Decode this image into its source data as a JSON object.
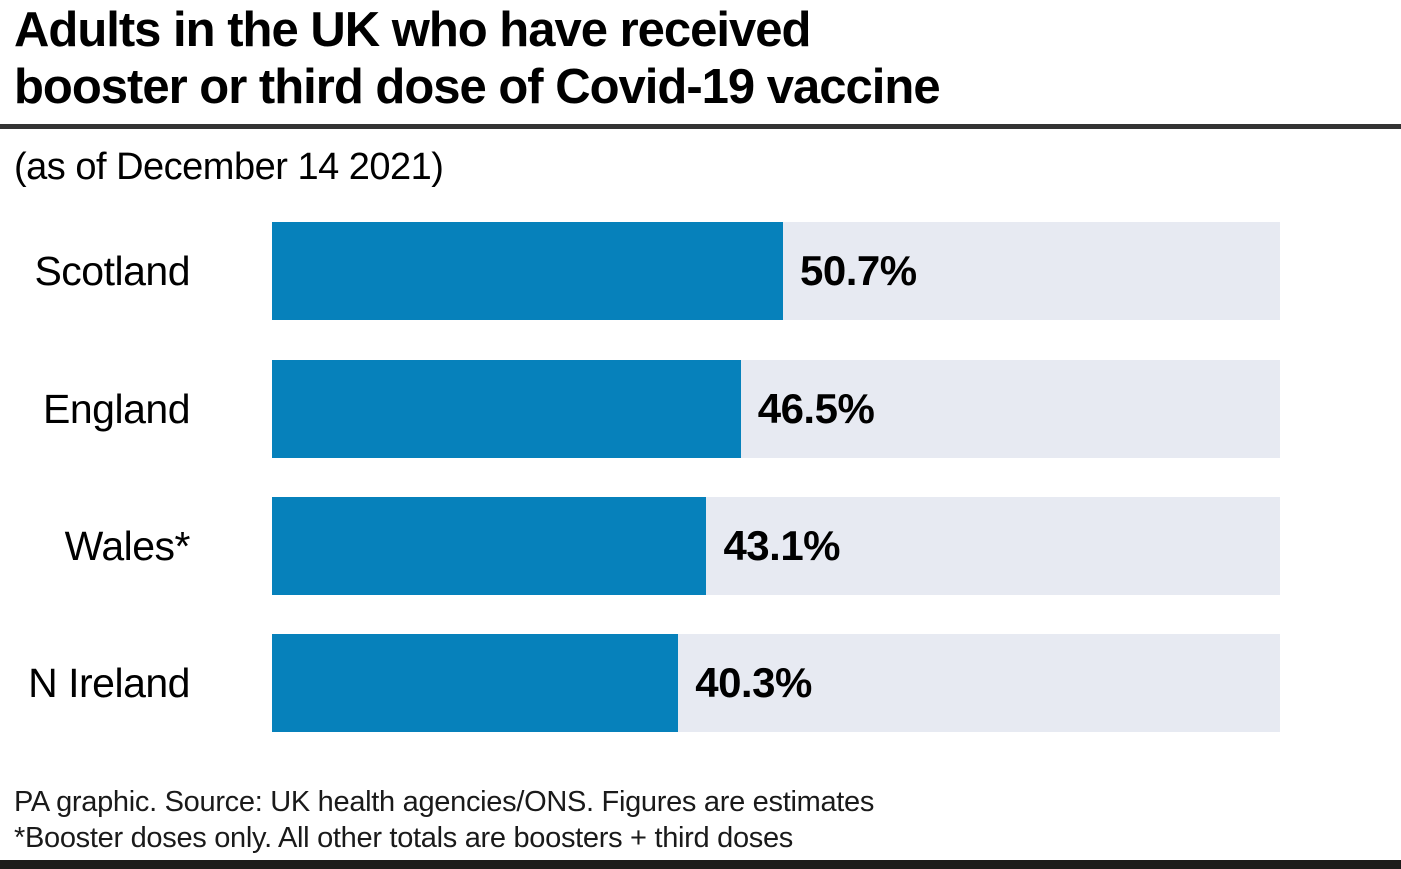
{
  "header": {
    "title_lines": [
      "Adults in the UK who have received",
      "booster or third dose of Covid-19 vaccine"
    ],
    "subtitle": "(as of December 14 2021)"
  },
  "chart_data": {
    "type": "bar",
    "orientation": "horizontal",
    "title": "Adults in the UK who have received booster or third dose of Covid-19 vaccine",
    "subtitle": "(as of December 14 2021)",
    "categories": [
      "Scotland",
      "England",
      "Wales*",
      "N Ireland"
    ],
    "values": [
      50.7,
      46.5,
      43.1,
      40.3
    ],
    "value_labels": [
      "50.7%",
      "46.5%",
      "43.1%",
      "40.3%"
    ],
    "xlabel": "",
    "ylabel": "",
    "xlim": [
      0,
      100
    ],
    "grid": false,
    "legend": false,
    "bar_color": "#0681bb",
    "track_color": "#e7eaf2"
  },
  "footer": {
    "source_line": "PA graphic. Source: UK health agencies/ONS. Figures are estimates",
    "note_line": "*Booster doses only. All other totals are boosters + third doses"
  },
  "colors": {
    "bar_fill": "#0681bb",
    "bar_track": "#e7eaf2",
    "title_divider": "#333333",
    "bottom_rule": "#1c1c1a",
    "text": "#000000"
  }
}
